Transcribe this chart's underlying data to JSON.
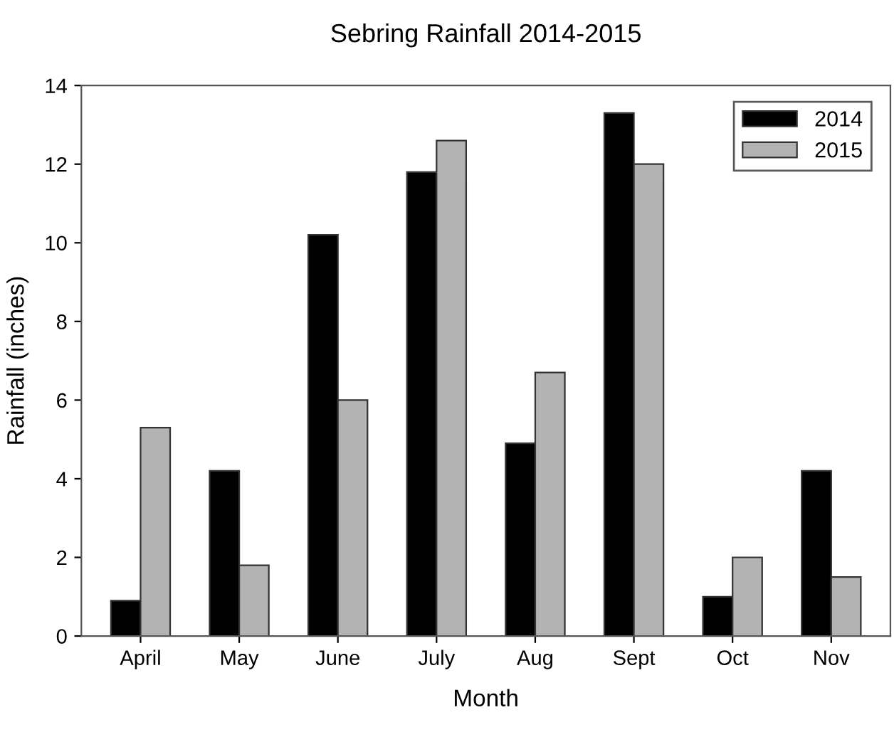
{
  "chart_data": {
    "type": "bar",
    "title": "Sebring Rainfall 2014-2015",
    "xlabel": "Month",
    "ylabel": "Rainfall (inches)",
    "categories": [
      "April",
      "May",
      "June",
      "July",
      "Aug",
      "Sept",
      "Oct",
      "Nov"
    ],
    "series": [
      {
        "name": "2014",
        "color": "#000000",
        "values": [
          0.9,
          4.2,
          10.2,
          11.8,
          4.9,
          13.3,
          1.0,
          4.2
        ]
      },
      {
        "name": "2015",
        "color": "#b3b3b3",
        "values": [
          5.3,
          1.8,
          6.0,
          12.6,
          6.7,
          12.0,
          2.0,
          1.5
        ]
      }
    ],
    "ylim": [
      0,
      14
    ],
    "yticks": [
      0,
      2,
      4,
      6,
      8,
      10,
      12,
      14
    ],
    "grid": false,
    "legend": "top right"
  }
}
